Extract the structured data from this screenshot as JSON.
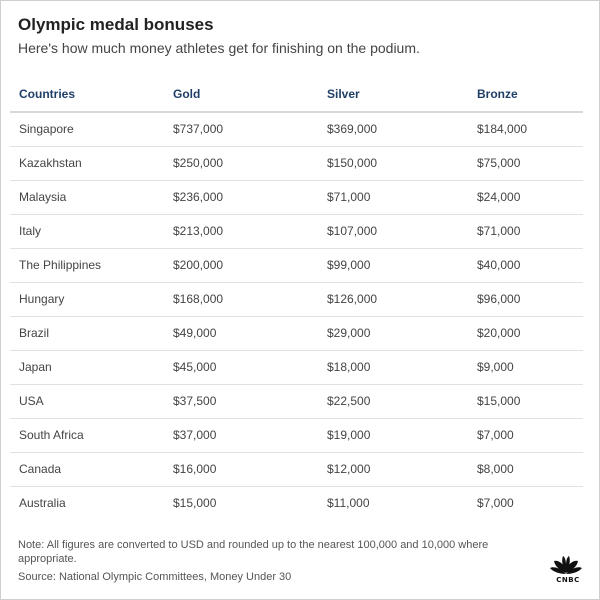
{
  "title": "Olympic medal bonuses",
  "subtitle": "Here's how much money athletes get for finishing on the podium.",
  "note": "Note: All figures are converted to USD and rounded up to the nearest 100,000 and 10,000 where appropriate.",
  "source": "Source: National Olympic Committees, Money Under 30",
  "logo_text": "CNBC",
  "colors": {
    "header_text": "#1f3f66",
    "body_text": "#444444",
    "rule": "#d8d8d8"
  },
  "chart_data": {
    "type": "table",
    "columns": [
      "Countries",
      "Gold",
      "Silver",
      "Bronze"
    ],
    "rows": [
      [
        "Singapore",
        "$737,000",
        "$369,000",
        "$184,000"
      ],
      [
        "Kazakhstan",
        "$250,000",
        "$150,000",
        "$75,000"
      ],
      [
        "Malaysia",
        "$236,000",
        "$71,000",
        "$24,000"
      ],
      [
        "Italy",
        "$213,000",
        "$107,000",
        "$71,000"
      ],
      [
        "The Philippines",
        "$200,000",
        "$99,000",
        "$40,000"
      ],
      [
        "Hungary",
        "$168,000",
        "$126,000",
        "$96,000"
      ],
      [
        "Brazil",
        "$49,000",
        "$29,000",
        "$20,000"
      ],
      [
        "Japan",
        "$45,000",
        "$18,000",
        "$9,000"
      ],
      [
        "USA",
        "$37,500",
        "$22,500",
        "$15,000"
      ],
      [
        "South Africa",
        "$37,000",
        "$19,000",
        "$7,000"
      ],
      [
        "Canada",
        "$16,000",
        "$12,000",
        "$8,000"
      ],
      [
        "Australia",
        "$15,000",
        "$11,000",
        "$7,000"
      ]
    ]
  }
}
